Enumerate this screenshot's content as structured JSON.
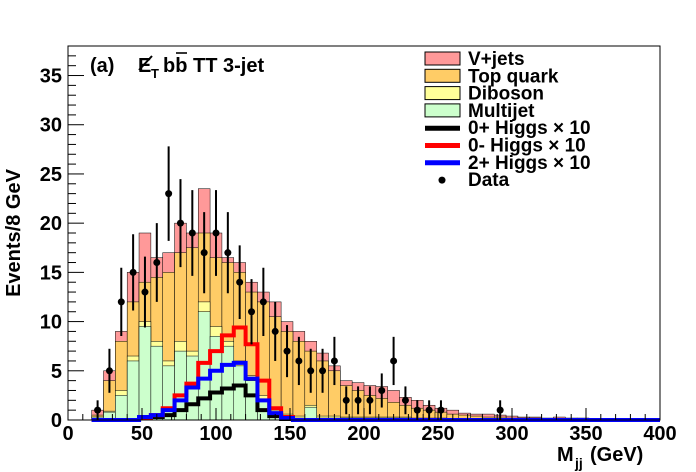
{
  "chart_data": {
    "type": "histogram",
    "panel_label": "(a)",
    "title_parts": {
      "met": "E",
      "met_sub": "T",
      "rest": "bb TT 3-jet",
      "bbar": "b"
    },
    "xlabel": "M",
    "xlabel_sub": "jj",
    "xlabel_unit": "(GeV)",
    "ylabel": "Events/8 GeV",
    "xlim": [
      0,
      400
    ],
    "ylim": [
      0,
      38
    ],
    "bin_width": 8,
    "bin_low_edge": 16,
    "xticks": [
      0,
      50,
      100,
      150,
      200,
      250,
      300,
      350,
      400
    ],
    "xtick_labels": [
      "0",
      "50",
      "100",
      "150",
      "200",
      "250",
      "300",
      "350",
      "400"
    ],
    "yticks": [
      0,
      5,
      10,
      15,
      20,
      25,
      30,
      35
    ],
    "ytick_labels": [
      "0",
      "5",
      "10",
      "15",
      "20",
      "25",
      "30",
      "35"
    ],
    "stack_order_bottom_to_top": [
      "Multijet",
      "Diboson",
      "Top quark",
      "V+jets"
    ],
    "cumulative_totals": {
      "Multijet": [
        0.3,
        0.8,
        2.5,
        6.0,
        9.5,
        7.5,
        5.5,
        7.0,
        6.5,
        11.0,
        8.5,
        7.5,
        5.5,
        4.0,
        2.0,
        1.0,
        0.3,
        0.2,
        1.3,
        0.2,
        0.2,
        0.2,
        0.2,
        0.2,
        0.2,
        0.2,
        0.2,
        0.1,
        0.1,
        0.1,
        0.1,
        0.1,
        0.1,
        0.1,
        0.1,
        0.1,
        0.1,
        0.1,
        0.1,
        0.1,
        0.1,
        0.1,
        0.1
      ],
      "Diboson": [
        0.3,
        0.9,
        3.0,
        6.5,
        10.0,
        8.0,
        6.0,
        8.0,
        7.0,
        12.0,
        9.5,
        8.0,
        6.0,
        4.5,
        2.5,
        1.3,
        0.6,
        0.4,
        1.5,
        0.4,
        0.4,
        0.3,
        0.3,
        0.3,
        0.3,
        0.3,
        0.3,
        0.2,
        0.2,
        0.2,
        0.1,
        0.1,
        0.1,
        0.1,
        0.1,
        0.1,
        0.1,
        0.1,
        0.1,
        0.1,
        0.1,
        0.1,
        0.1
      ],
      "Top quark": [
        0.5,
        4.0,
        8.0,
        12.0,
        14.0,
        14.5,
        15.0,
        17.0,
        17.5,
        19.0,
        16.5,
        16.0,
        15.0,
        13.0,
        12.0,
        10.5,
        9.0,
        8.0,
        7.0,
        6.0,
        5.0,
        3.5,
        3.0,
        2.5,
        2.2,
        1.8,
        1.5,
        1.2,
        1.0,
        0.8,
        0.6,
        0.5,
        0.4,
        0.3,
        0.3,
        0.2,
        0.2,
        0.2,
        0.1,
        0.1,
        0.1,
        0.1,
        0.1
      ],
      "V+jets": [
        1.0,
        5.0,
        9.0,
        15.0,
        19.0,
        16.5,
        17.0,
        20.0,
        19.0,
        23.5,
        19.0,
        16.5,
        16.0,
        14.0,
        13.0,
        12.0,
        10.0,
        9.0,
        8.0,
        6.8,
        5.5,
        4.0,
        3.8,
        3.5,
        3.4,
        3.0,
        2.3,
        2.0,
        1.5,
        1.2,
        1.0,
        0.7,
        0.6,
        0.6,
        0.5,
        0.4,
        0.3,
        0.3,
        0.2,
        0.3,
        0.2,
        0.2,
        0.1
      ]
    },
    "signals": [
      {
        "name": "0+ Higgs × 10",
        "values": [
          0.0,
          0.0,
          0.0,
          0.0,
          0.2,
          0.3,
          0.5,
          1.0,
          1.6,
          2.2,
          2.8,
          3.2,
          3.5,
          2.5,
          1.0,
          0.4,
          0.1,
          0.0,
          0.0,
          0.0,
          0.0,
          0.0,
          0.0,
          0.0,
          0.0,
          0.0,
          0.0,
          0.0,
          0.0,
          0.0,
          0.0,
          0.0,
          0.0,
          0.0,
          0.0,
          0.0,
          0.0,
          0.0,
          0.0,
          0.0,
          0.0,
          0.0,
          0.0
        ]
      },
      {
        "name": "0- Higgs × 10",
        "values": [
          0.0,
          0.0,
          0.0,
          0.0,
          0.2,
          0.5,
          1.2,
          2.5,
          3.7,
          5.8,
          7.0,
          8.6,
          9.4,
          7.7,
          4.0,
          1.2,
          0.3,
          0.0,
          0.0,
          0.0,
          0.0,
          0.0,
          0.0,
          0.0,
          0.0,
          0.0,
          0.0,
          0.0,
          0.0,
          0.0,
          0.0,
          0.0,
          0.0,
          0.0,
          0.0,
          0.0,
          0.0,
          0.0,
          0.0,
          0.0,
          0.0,
          0.0,
          0.0
        ]
      },
      {
        "name": "2+ Higgs × 10",
        "values": [
          0.0,
          0.0,
          0.0,
          0.0,
          0.3,
          0.5,
          1.0,
          2.0,
          3.3,
          4.2,
          5.0,
          5.6,
          5.8,
          4.2,
          2.0,
          0.7,
          0.2,
          0.0,
          0.0,
          0.0,
          0.0,
          0.0,
          0.0,
          0.0,
          0.0,
          0.0,
          0.0,
          0.0,
          0.0,
          0.0,
          0.0,
          0.0,
          0.0,
          0.0,
          0.0,
          0.0,
          0.0,
          0.0,
          0.0,
          0.0,
          0.0,
          0.0,
          0.0
        ]
      }
    ],
    "data_points": {
      "x": [
        20,
        28,
        36,
        44,
        52,
        60,
        68,
        76,
        84,
        92,
        100,
        108,
        116,
        124,
        132,
        140,
        148,
        156,
        164,
        172,
        180,
        188,
        196,
        204,
        212,
        220,
        228,
        236,
        244,
        252,
        260,
        268,
        276,
        284,
        292
      ],
      "y": [
        1,
        5,
        12,
        15,
        13,
        16,
        23,
        20,
        19,
        17,
        19,
        17,
        14,
        11,
        12,
        9,
        7,
        6,
        5,
        5,
        6,
        2,
        2,
        2,
        3,
        6,
        2,
        1,
        1,
        1,
        0,
        0,
        0,
        0,
        1
      ]
    },
    "legend": {
      "position": "top-right",
      "entries": [
        {
          "label": "V+jets",
          "color": "#ff9999",
          "kind": "fill"
        },
        {
          "label": "Top quark",
          "color": "#ffcc66",
          "kind": "fill"
        },
        {
          "label": "Diboson",
          "color": "#ffff99",
          "kind": "fill"
        },
        {
          "label": "Multijet",
          "color": "#ccffcc",
          "kind": "fill"
        },
        {
          "label": "0+ Higgs",
          "suffix": "× 10",
          "color": "#000000",
          "kind": "line"
        },
        {
          "label": "0- Higgs",
          "suffix": "× 10",
          "color": "#ff0000",
          "kind": "line"
        },
        {
          "label": "2+ Higgs",
          "suffix": "× 10",
          "color": "#0000ff",
          "kind": "line"
        },
        {
          "label": "Data",
          "color": "#000000",
          "kind": "marker"
        }
      ]
    },
    "colors": {
      "V+jets": "#ff9999",
      "Top quark": "#ffcc66",
      "Diboson": "#ffff99",
      "Multijet": "#ccffcc",
      "0+ Higgs × 10": "#000000",
      "0- Higgs × 10": "#ff0000",
      "2+ Higgs × 10": "#0000ff"
    }
  }
}
